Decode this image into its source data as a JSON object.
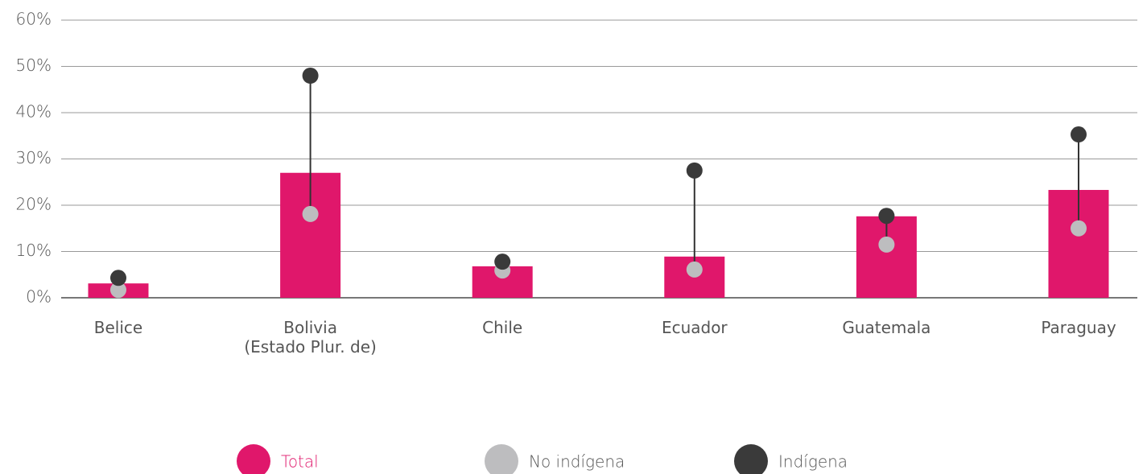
{
  "chart_data": {
    "type": "bar_dot",
    "categories": [
      "Belice",
      "Bolivia\n(Estado Plur. de)",
      "Chile",
      "Ecuador",
      "Guatemala",
      "Paraguay"
    ],
    "series": [
      {
        "name": "Total",
        "color": "#e0176b",
        "values": [
          3.1,
          27.0,
          6.8,
          8.9,
          17.6,
          23.3
        ]
      },
      {
        "name": "No indígena",
        "color": "#bdbdbf",
        "values": [
          1.7,
          18.1,
          5.9,
          6.1,
          11.5,
          15.0
        ]
      },
      {
        "name": "Indígena",
        "color": "#3a3a3a",
        "values": [
          4.3,
          48.0,
          7.8,
          27.5,
          17.7,
          35.3
        ]
      }
    ],
    "ylim": [
      0,
      60
    ],
    "yticks": [
      {
        "value": 0,
        "label": "0%"
      },
      {
        "value": 10,
        "label": "10%"
      },
      {
        "value": 20,
        "label": "20%"
      },
      {
        "value": 30,
        "label": "30%"
      },
      {
        "value": 40,
        "label": "40%"
      },
      {
        "value": 50,
        "label": "50%"
      },
      {
        "value": 60,
        "label": "60%"
      }
    ],
    "grid": true
  }
}
